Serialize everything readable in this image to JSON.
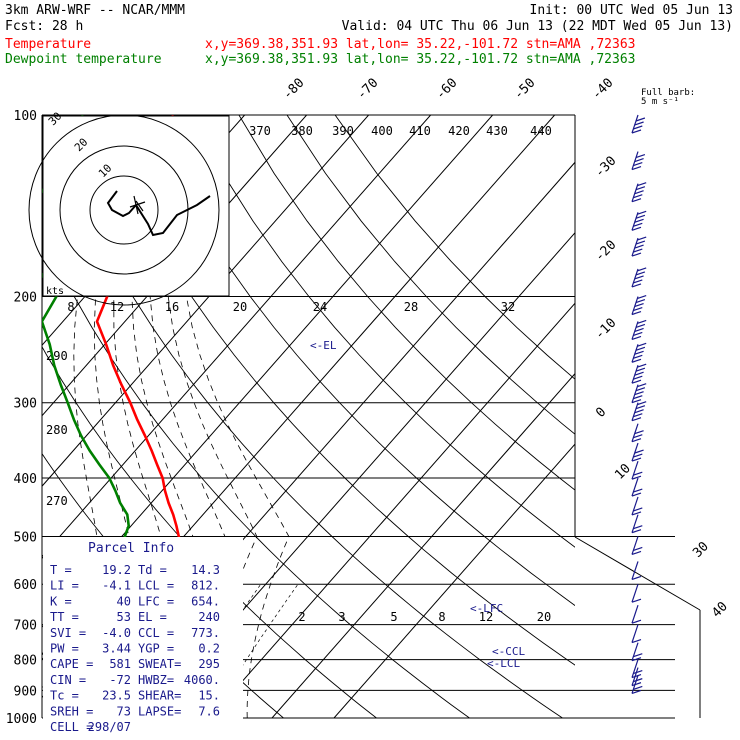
{
  "header": {
    "model": "3km ARW-WRF -- NCAR/MMM",
    "init": "Init: 00 UTC Wed 05 Jun 13",
    "fcst": "Fcst:    28 h",
    "valid": "Valid: 04 UTC Thu 06 Jun 13 (22 MDT Wed 05 Jun 13)",
    "temp_label": "Temperature",
    "dew_label": "Dewpoint temperature",
    "temp_loc": "x,y=369.38,351.93   lat,lon= 35.22,-101.72  stn=AMA ,72363",
    "dew_loc": "x,y=369.38,351.93   lat,lon= 35.22,-101.72  stn=AMA ,72363",
    "temp_color": "#ff0000",
    "dew_color": "#008000"
  },
  "parcel_info": {
    "title": "Parcel Info",
    "rows": [
      [
        "T   =",
        "19.2",
        "Td  =",
        "14.3"
      ],
      [
        "LI  =",
        "-4.1",
        "LCL =",
        "812."
      ],
      [
        "K   =",
        "40",
        "LFC =",
        "654."
      ],
      [
        "TT  =",
        "53",
        "EL  =",
        "240"
      ],
      [
        "SVI =",
        "-4.0",
        "CCL =",
        "773."
      ],
      [
        "PW  =",
        "3.44",
        "YGP =",
        "0.2"
      ],
      [
        "CAPE =",
        "581",
        "SWEAT=",
        "295"
      ],
      [
        "CIN  =",
        "-72",
        "HWBZ=",
        "4060."
      ],
      [
        "Tc  =",
        "23.5",
        "SHEAR=",
        "15."
      ],
      [
        "SREH =",
        "73",
        "LAPSE=",
        "7.6"
      ],
      [
        "CELL =",
        "298/07",
        "",
        ""
      ]
    ]
  },
  "annotations": {
    "el": "<-EL",
    "lfc": "<-LFC",
    "ccl": "<-CCL",
    "lcl": "<-LCL",
    "full_barb": "Full barb:",
    "full_barb_unit": "5 m s⁻¹",
    "kts": "kts"
  },
  "hodograph": {
    "ring_labels": [
      "10",
      "20",
      "30"
    ]
  },
  "chart_data": {
    "type": "line",
    "title": "",
    "xlabel": "",
    "ylabel": "",
    "pressure_ticks": [
      100,
      200,
      300,
      400,
      500,
      600,
      700,
      800,
      900,
      1000
    ],
    "temp_skew_labels": [
      "-80",
      "-70",
      "-60",
      "-50",
      "-40",
      "-30",
      "-20",
      "-10",
      "0",
      "10",
      "20",
      "30",
      "40"
    ],
    "theta_labels": [
      "370",
      "380",
      "390",
      "400",
      "410",
      "420",
      "430",
      "440"
    ],
    "mixing_ratio_labels_upper": [
      "8",
      "12",
      "16",
      "20",
      "24",
      "28",
      "32"
    ],
    "mixing_ratio_labels_lower": [
      "2",
      "3",
      "5",
      "8",
      "12",
      "20"
    ],
    "theta_left_labels": [
      "290",
      "280",
      "270"
    ],
    "series": [
      {
        "name": "Temperature",
        "color": "#ff0000",
        "pressure": [
          900,
          880,
          860,
          840,
          820,
          800,
          780,
          760,
          740,
          720,
          700,
          680,
          660,
          640,
          620,
          600,
          580,
          560,
          540,
          520,
          500,
          480,
          460,
          440,
          420,
          400,
          380,
          360,
          340,
          320,
          300,
          280,
          260,
          240,
          220,
          200,
          180,
          160,
          150,
          140,
          130,
          120,
          110,
          100
        ],
        "temperature": [
          19.2,
          16.8,
          15.5,
          13.9,
          13.1,
          13.2,
          12.1,
          10.6,
          9.1,
          7.4,
          5.6,
          3.8,
          2.2,
          0.7,
          -0.5,
          -1.8,
          -3.4,
          -5.2,
          -7.0,
          -8.9,
          -10.8,
          -12.7,
          -14.8,
          -17.2,
          -19.5,
          -21.7,
          -24.5,
          -27.4,
          -30.6,
          -34.1,
          -37.6,
          -41.6,
          -45.7,
          -49.8,
          -54.5,
          -56.4,
          -59.8,
          -64.0,
          -65.5,
          -67.5,
          -69.0,
          -70.1,
          -70.5,
          -71.5
        ]
      },
      {
        "name": "Dewpoint temperature",
        "color": "#008000",
        "pressure": [
          900,
          880,
          860,
          840,
          820,
          800,
          780,
          760,
          740,
          720,
          700,
          680,
          660,
          640,
          620,
          600,
          580,
          560,
          540,
          520,
          500,
          480,
          460,
          440,
          420,
          400,
          380,
          360,
          340,
          320,
          300,
          280,
          260,
          240,
          220,
          200,
          180,
          160,
          140,
          120,
          110,
          100
        ],
        "temperature": [
          14.3,
          13.6,
          12.8,
          12.3,
          12.1,
          11.6,
          10.8,
          9.9,
          8.8,
          7.1,
          5.1,
          3.1,
          1.1,
          -0.7,
          -2.1,
          -4.4,
          -8.1,
          -12.9,
          -16.1,
          -17.7,
          -19.5,
          -20.4,
          -22.2,
          -25.0,
          -27.5,
          -30.3,
          -33.8,
          -37.4,
          -40.9,
          -44.3,
          -47.7,
          -51.4,
          -55.2,
          -58.9,
          -63.4,
          -64.6,
          -71.5,
          -79.1,
          -81.7,
          -82.3,
          -84.1,
          -86.1
        ]
      }
    ],
    "wind_barbs": {
      "pressure": [
        100,
        115,
        130,
        145,
        160,
        180,
        200,
        220,
        240,
        260,
        280,
        300,
        325,
        350,
        375,
        400,
        430,
        460,
        500,
        550,
        600,
        650,
        700,
        750,
        800,
        825,
        850
      ],
      "speed_ms": [
        20,
        22,
        24,
        25,
        25,
        25,
        25,
        25,
        25,
        25,
        25,
        25,
        15,
        15,
        12,
        12,
        10,
        10,
        8,
        5,
        3,
        5,
        5,
        8,
        10,
        10,
        10
      ],
      "dir_deg": [
        270,
        270,
        270,
        270,
        270,
        270,
        270,
        270,
        270,
        270,
        270,
        270,
        280,
        280,
        280,
        280,
        280,
        280,
        280,
        290,
        300,
        300,
        310,
        320,
        330,
        330,
        330
      ]
    }
  }
}
